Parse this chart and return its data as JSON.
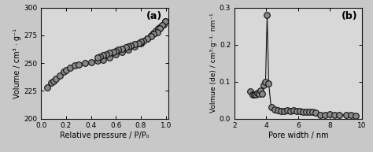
{
  "plot_a": {
    "label": "(a)",
    "xlabel": "Relative pressure / P/P₀",
    "ylabel": "Volume / cm³ · g⁻¹",
    "xlim": [
      0.0,
      1.02
    ],
    "ylim": [
      200,
      300
    ],
    "yticks": [
      200,
      225,
      250,
      275,
      300
    ],
    "xticks": [
      0.0,
      0.2,
      0.4,
      0.6,
      0.8,
      1.0
    ],
    "adsorption_x": [
      0.05,
      0.08,
      0.1,
      0.12,
      0.15,
      0.18,
      0.2,
      0.23,
      0.27,
      0.3,
      0.35,
      0.4,
      0.45,
      0.5,
      0.55,
      0.6,
      0.65,
      0.7,
      0.75,
      0.8,
      0.85,
      0.88,
      0.9,
      0.92,
      0.94,
      0.96,
      0.98,
      0.995
    ],
    "adsorption_y": [
      228,
      232,
      234,
      236,
      239,
      242,
      244,
      246,
      248,
      249,
      250,
      251,
      252,
      253,
      255,
      258,
      260,
      262,
      265,
      268,
      272,
      275,
      277,
      279,
      281,
      283,
      285,
      288
    ],
    "desorption_x": [
      0.995,
      0.97,
      0.95,
      0.93,
      0.9,
      0.88,
      0.85,
      0.82,
      0.8,
      0.78,
      0.75,
      0.72,
      0.7,
      0.68,
      0.65,
      0.62,
      0.6,
      0.58,
      0.55,
      0.52,
      0.5,
      0.47,
      0.45
    ],
    "desorption_y": [
      288,
      284,
      281,
      278,
      276,
      274,
      272,
      270,
      269,
      268,
      267,
      266,
      265,
      264,
      263,
      262,
      261,
      260,
      259,
      258,
      257,
      256,
      255
    ]
  },
  "plot_b": {
    "label": "(b)",
    "xlabel": "Pore width / nm",
    "ylabel": "Volmue (de) / cm³·g⁻¹· nm⁻¹",
    "xlim": [
      2,
      10
    ],
    "ylim": [
      0.0,
      0.3
    ],
    "yticks": [
      0.0,
      0.1,
      0.2,
      0.3
    ],
    "xticks": [
      2,
      4,
      6,
      8,
      10
    ],
    "x": [
      3.0,
      3.15,
      3.25,
      3.35,
      3.45,
      3.55,
      3.65,
      3.75,
      3.85,
      3.95,
      4.05,
      4.15,
      4.3,
      4.5,
      4.7,
      4.9,
      5.1,
      5.3,
      5.5,
      5.7,
      5.9,
      6.1,
      6.3,
      6.5,
      6.7,
      6.9,
      7.1,
      7.4,
      7.7,
      8.0,
      8.3,
      8.6,
      9.0,
      9.3,
      9.6
    ],
    "y": [
      0.073,
      0.065,
      0.066,
      0.065,
      0.07,
      0.068,
      0.076,
      0.067,
      0.09,
      0.1,
      0.28,
      0.095,
      0.03,
      0.025,
      0.022,
      0.02,
      0.02,
      0.022,
      0.02,
      0.022,
      0.02,
      0.02,
      0.019,
      0.018,
      0.018,
      0.018,
      0.015,
      0.01,
      0.01,
      0.012,
      0.01,
      0.01,
      0.01,
      0.01,
      0.008
    ]
  },
  "marker_facecolor": "#888888",
  "marker_edge": "#111111",
  "line_color": "#111111",
  "marker_size": 5.5,
  "marker_edge_width": 0.8,
  "fig_facecolor": "#c8c8c8",
  "axes_facecolor": "#d8d8d8"
}
